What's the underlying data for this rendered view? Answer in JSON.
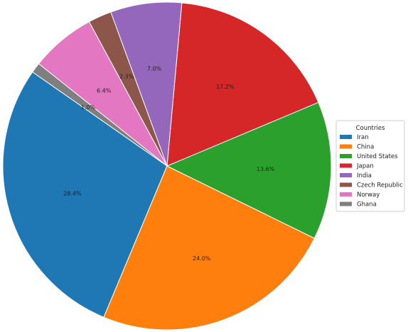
{
  "chart_data": {
    "type": "pie",
    "legend_title": "Countries",
    "legend_position": "right",
    "value_format": "percent with one decimal",
    "slices": [
      {
        "label": "Iran",
        "value": 28.4,
        "display": "28.4%",
        "color": "#1f77b4"
      },
      {
        "label": "China",
        "value": 24.0,
        "display": "24.0%",
        "color": "#ff7f0e"
      },
      {
        "label": "United States",
        "value": 13.6,
        "display": "13.6%",
        "color": "#2ca02c"
      },
      {
        "label": "Japan",
        "value": 17.2,
        "display": "17.2%",
        "color": "#d62728"
      },
      {
        "label": "India",
        "value": 7.0,
        "display": "7.0%",
        "color": "#9467bd"
      },
      {
        "label": "Czech Republic",
        "value": 2.3,
        "display": "2.3%",
        "color": "#8c564b"
      },
      {
        "label": "Norway",
        "value": 6.4,
        "display": "6.4%",
        "color": "#e377c2"
      },
      {
        "label": "Ghana",
        "value": 1.0,
        "display": "1.0%",
        "color": "#7f7f7f"
      }
    ]
  }
}
